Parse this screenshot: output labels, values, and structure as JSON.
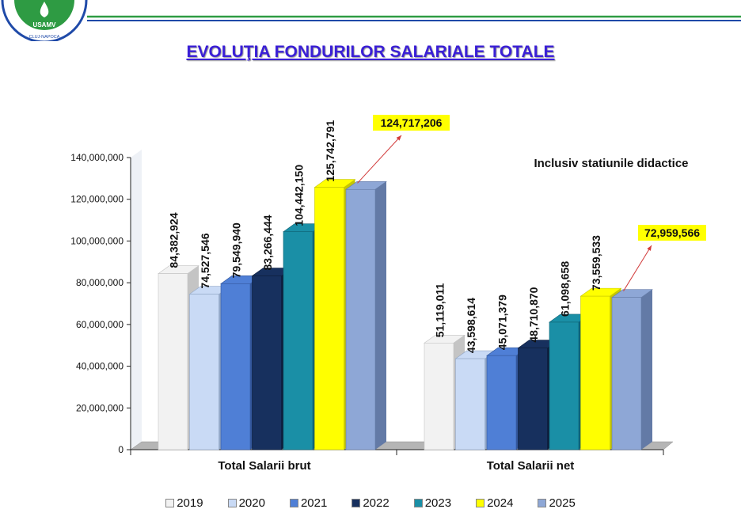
{
  "header": {
    "logo_text": "USAMV",
    "logo_subtext": "CLUJ-NAPOCA",
    "title": "EVOLUŢIA FONDURILOR SALARIALE TOTALE"
  },
  "chart_data": {
    "type": "bar",
    "title": "EVOLUŢIA FONDURILOR SALARIALE TOTALE",
    "annotation": "Inclusiv statiunile didactice",
    "categories": [
      "Total Salarii brut",
      "Total Salarii net"
    ],
    "xlabel": "",
    "ylabel": "",
    "ylim": [
      0,
      140000000
    ],
    "yticks": [
      0,
      20000000,
      40000000,
      60000000,
      80000000,
      100000000,
      120000000,
      140000000
    ],
    "ytick_labels": [
      "0",
      "20,000,000",
      "40,000,000",
      "60,000,000",
      "80,000,000",
      "100,000,000",
      "120,000,000",
      "140,000,000"
    ],
    "legend_position": "bottom",
    "series": [
      {
        "name": "2019",
        "color": "#f2f2f2",
        "side": "#c4c4c4",
        "values": [
          84382924,
          51119011
        ],
        "labels": [
          "84,382,924",
          "51,119,011"
        ]
      },
      {
        "name": "2020",
        "color": "#c9daf5",
        "side": "#93a8c8",
        "values": [
          74527546,
          43598614
        ],
        "labels": [
          "74,527,546",
          "43,598,614"
        ]
      },
      {
        "name": "2021",
        "color": "#4f7fd6",
        "side": "#34589d",
        "values": [
          79549940,
          45071379
        ],
        "labels": [
          "79,549,940",
          "45,071,379"
        ]
      },
      {
        "name": "2022",
        "color": "#17305e",
        "side": "#0d1d3b",
        "values": [
          83266444,
          48710870
        ],
        "labels": [
          "83,266,444",
          "48,710,870"
        ]
      },
      {
        "name": "2023",
        "color": "#1a8fa6",
        "side": "#106576",
        "values": [
          104442150,
          61098658
        ],
        "labels": [
          "104,442,150",
          "61,098,658"
        ]
      },
      {
        "name": "2024",
        "color": "#ffff00",
        "side": "#c6c600",
        "values": [
          125742791,
          73559533
        ],
        "labels": [
          "125,742,791",
          "73,559,533"
        ]
      },
      {
        "name": "2025",
        "color": "#8ea7d6",
        "side": "#637aa6",
        "values": [
          124717206,
          72959566
        ],
        "labels": [
          "124,717,206",
          "72,959,566"
        ],
        "callout": true
      }
    ]
  }
}
